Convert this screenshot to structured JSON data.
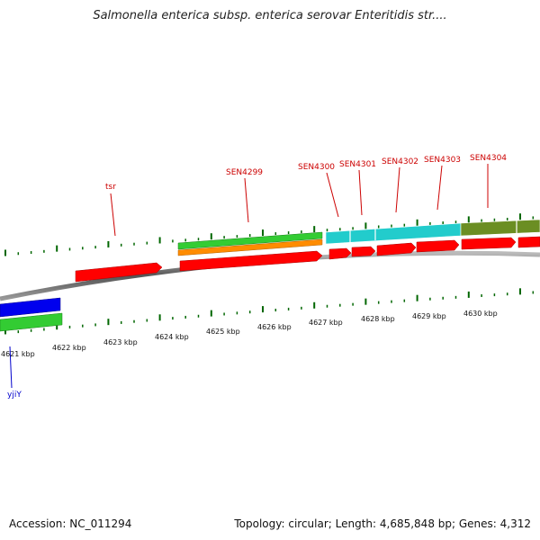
{
  "title": "Salmonella enterica subsp. enterica serovar Enteritidis str....",
  "footer": {
    "accession": "Accession: NC_011294",
    "summary": "Topology: circular; Length: 4,685,848 bp; Genes: 4,312"
  },
  "colors": {
    "forward_cds": "#ff0000",
    "orange": "#ff8c00",
    "green": "#33cc33",
    "cyan": "#22cccc",
    "olive": "#6b8e23",
    "blue": "#0000ee",
    "tick": "#006600",
    "backbone": "#888888",
    "label_red": "#cc0000",
    "label_blue": "#0000cc"
  },
  "scale_labels": [
    "4621 kbp",
    "4622 kbp",
    "4623 kbp",
    "4624 kbp",
    "4625 kbp",
    "4626 kbp",
    "4627 kbp",
    "4628 kbp",
    "4629 kbp",
    "4630 kbp"
  ],
  "gene_labels": [
    "tsr",
    "SEN4299",
    "SEN4300",
    "SEN4301",
    "SEN4302",
    "SEN4303",
    "SEN4304",
    "yjiY"
  ]
}
